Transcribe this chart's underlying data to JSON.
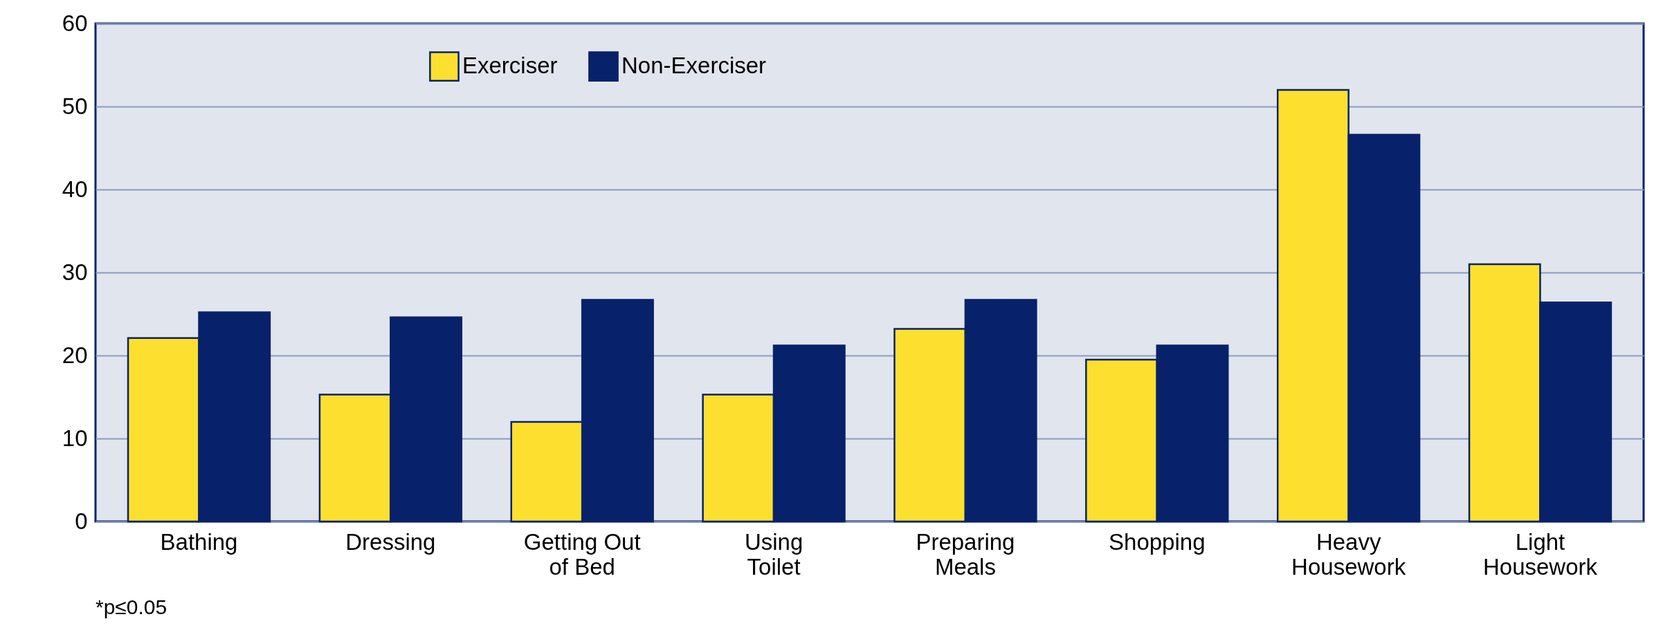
{
  "chart_data": {
    "type": "bar",
    "categories": [
      "Bathing",
      "Dressing",
      "Getting Out of Bed",
      "Using Toilet",
      "Preparing Meals",
      "Shopping",
      "Heavy Housework",
      "Light Housework"
    ],
    "series": [
      {
        "name": "Exerciser",
        "color": "#fde02f",
        "values": [
          22.1,
          15.3,
          12.0,
          15.3,
          23.2,
          19.5,
          52.0,
          31.0
        ]
      },
      {
        "name": "Non-Exerciser",
        "color": "#07226a",
        "values": [
          25.2,
          24.6,
          26.7,
          21.2,
          26.7,
          21.2,
          46.6,
          26.4
        ]
      }
    ],
    "ylim": [
      0,
      60
    ],
    "yticks": [
      0,
      10,
      20,
      30,
      40,
      50,
      60
    ],
    "grid": "y",
    "legend": "top left",
    "annotations": [
      "*p≤0.05"
    ]
  }
}
